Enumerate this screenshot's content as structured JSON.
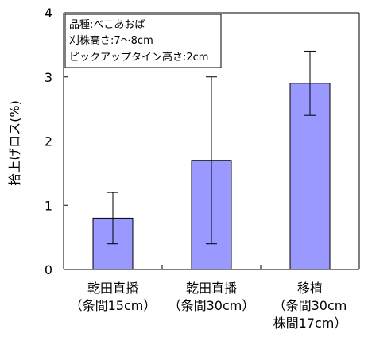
{
  "chart_data": {
    "type": "bar",
    "ylabel": "拾上げロス(%)",
    "ylim": [
      0,
      4
    ],
    "yticks": [
      0,
      1,
      2,
      3,
      4
    ],
    "grid": false,
    "categories": [
      [
        "乾田直播",
        "（条間15cm）"
      ],
      [
        "乾田直播",
        "（条間30cm）"
      ],
      [
        "移植",
        "（条間30cm",
        "株間17cm）"
      ]
    ],
    "series": [
      {
        "values": [
          0.8,
          1.7,
          2.9
        ],
        "error_low": [
          0.4,
          0.4,
          2.4
        ],
        "error_high": [
          1.2,
          3.0,
          3.4
        ],
        "color": "#9999ff",
        "edge_color": "#000000"
      }
    ],
    "annotation": [
      "品種:べこあおば",
      "刈株高さ:7～8cm",
      "ピックアップタイン高さ:2cm"
    ]
  }
}
